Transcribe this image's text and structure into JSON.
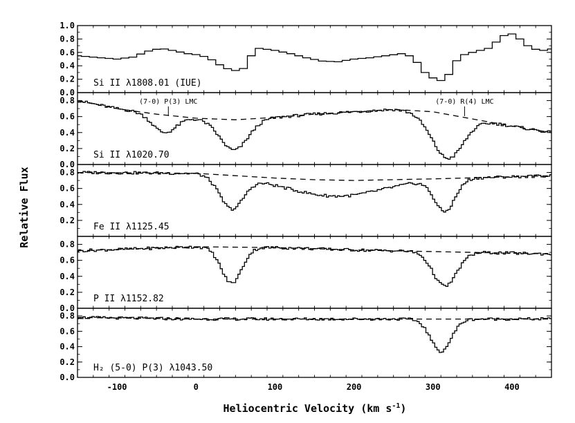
{
  "chart_data": {
    "type": "line",
    "xlabel_main": "Heliocentric Velocity (km s",
    "xlabel_sup": "-1",
    "xlabel_end": ")",
    "ylabel": "Relative Flux",
    "xlim": [
      -150,
      450
    ],
    "x_ticks": [
      -100,
      0,
      100,
      200,
      300,
      400
    ],
    "panels": [
      {
        "label": "Si II  λ1808.01 (IUE)",
        "ylim": [
          0,
          1.0
        ],
        "y_ticks": [
          "0.0",
          "0.2",
          "0.4",
          "0.6",
          "0.8",
          "1.0"
        ],
        "kind": "iue",
        "continuum": null,
        "markers": [],
        "spectrum": [
          [
            -150,
            0.55
          ],
          [
            -120,
            0.52
          ],
          [
            -100,
            0.5
          ],
          [
            -80,
            0.53
          ],
          [
            -60,
            0.62
          ],
          [
            -45,
            0.66
          ],
          [
            -30,
            0.63
          ],
          [
            -10,
            0.58
          ],
          [
            5,
            0.56
          ],
          [
            15,
            0.52
          ],
          [
            25,
            0.46
          ],
          [
            35,
            0.37
          ],
          [
            50,
            0.33
          ],
          [
            60,
            0.36
          ],
          [
            70,
            0.55
          ],
          [
            80,
            0.66
          ],
          [
            100,
            0.63
          ],
          [
            120,
            0.58
          ],
          [
            140,
            0.52
          ],
          [
            160,
            0.47
          ],
          [
            180,
            0.46
          ],
          [
            200,
            0.5
          ],
          [
            220,
            0.52
          ],
          [
            240,
            0.55
          ],
          [
            260,
            0.58
          ],
          [
            270,
            0.55
          ],
          [
            280,
            0.45
          ],
          [
            290,
            0.3
          ],
          [
            300,
            0.22
          ],
          [
            310,
            0.18
          ],
          [
            318,
            0.22
          ],
          [
            325,
            0.4
          ],
          [
            335,
            0.55
          ],
          [
            350,
            0.6
          ],
          [
            370,
            0.66
          ],
          [
            385,
            0.8
          ],
          [
            395,
            0.9
          ],
          [
            405,
            0.85
          ],
          [
            420,
            0.7
          ],
          [
            435,
            0.62
          ],
          [
            450,
            0.65
          ]
        ]
      },
      {
        "label": "Si II  λ1020.70",
        "ylim": [
          0,
          0.9
        ],
        "y_ticks": [
          "0.0",
          "0.2",
          "0.4",
          "0.6",
          "0.8"
        ],
        "kind": "fuse",
        "continuum": [
          [
            -150,
            0.8
          ],
          [
            -100,
            0.7
          ],
          [
            -50,
            0.63
          ],
          [
            0,
            0.58
          ],
          [
            50,
            0.56
          ],
          [
            100,
            0.59
          ],
          [
            150,
            0.63
          ],
          [
            200,
            0.66
          ],
          [
            250,
            0.69
          ],
          [
            300,
            0.66
          ],
          [
            350,
            0.57
          ],
          [
            400,
            0.48
          ],
          [
            450,
            0.4
          ]
        ],
        "markers": [
          {
            "x": -35,
            "text": "(7-0) P(3) LMC"
          },
          {
            "x": 340,
            "text": "(7-0) R(4) LMC"
          }
        ],
        "dips": [
          {
            "c": -40,
            "w": 15,
            "d": 0.22
          },
          {
            "c": 48,
            "w": 18,
            "d": 0.38
          },
          {
            "c": 318,
            "w": 20,
            "d": 0.55
          }
        ],
        "spectrum": []
      },
      {
        "label": "Fe II  λ1125.45",
        "ylim": [
          0,
          0.9
        ],
        "y_ticks": [
          "0.2",
          "0.4",
          "0.6",
          "0.8"
        ],
        "kind": "fuse",
        "continuum": [
          [
            -150,
            0.8
          ],
          [
            0,
            0.79
          ],
          [
            50,
            0.76
          ],
          [
            100,
            0.73
          ],
          [
            150,
            0.71
          ],
          [
            200,
            0.7
          ],
          [
            300,
            0.72
          ],
          [
            450,
            0.76
          ]
        ],
        "markers": [],
        "dips": [
          {
            "c": 45,
            "w": 15,
            "d": 0.4
          },
          {
            "c": 315,
            "w": 13,
            "d": 0.4
          },
          {
            "c": 175,
            "w": 60,
            "d": 0.2
          }
        ],
        "spectrum": []
      },
      {
        "label": "P II  λ1152.82",
        "ylim": [
          0,
          0.9
        ],
        "y_ticks": [
          "0.0",
          "0.2",
          "0.4",
          "0.6",
          "0.8"
        ],
        "kind": "fuse",
        "continuum": [
          [
            -150,
            0.72
          ],
          [
            0,
            0.77
          ],
          [
            100,
            0.76
          ],
          [
            200,
            0.73
          ],
          [
            300,
            0.71
          ],
          [
            450,
            0.68
          ]
        ],
        "markers": [],
        "dips": [
          {
            "c": 45,
            "w": 13,
            "d": 0.45
          },
          {
            "c": 315,
            "w": 15,
            "d": 0.43
          }
        ],
        "spectrum": []
      },
      {
        "label": "H₂ (5-0) P(3)  λ1043.50",
        "ylim": [
          0,
          0.9
        ],
        "y_ticks": [
          "0.0",
          "0.2",
          "0.4",
          "0.6",
          "0.8"
        ],
        "kind": "fuse",
        "continuum": [
          [
            -150,
            0.78
          ],
          [
            0,
            0.76
          ],
          [
            100,
            0.76
          ],
          [
            200,
            0.76
          ],
          [
            300,
            0.76
          ],
          [
            450,
            0.76
          ]
        ],
        "markers": [],
        "dips": [
          {
            "c": 310,
            "w": 13,
            "d": 0.42
          }
        ],
        "spectrum": []
      }
    ]
  }
}
